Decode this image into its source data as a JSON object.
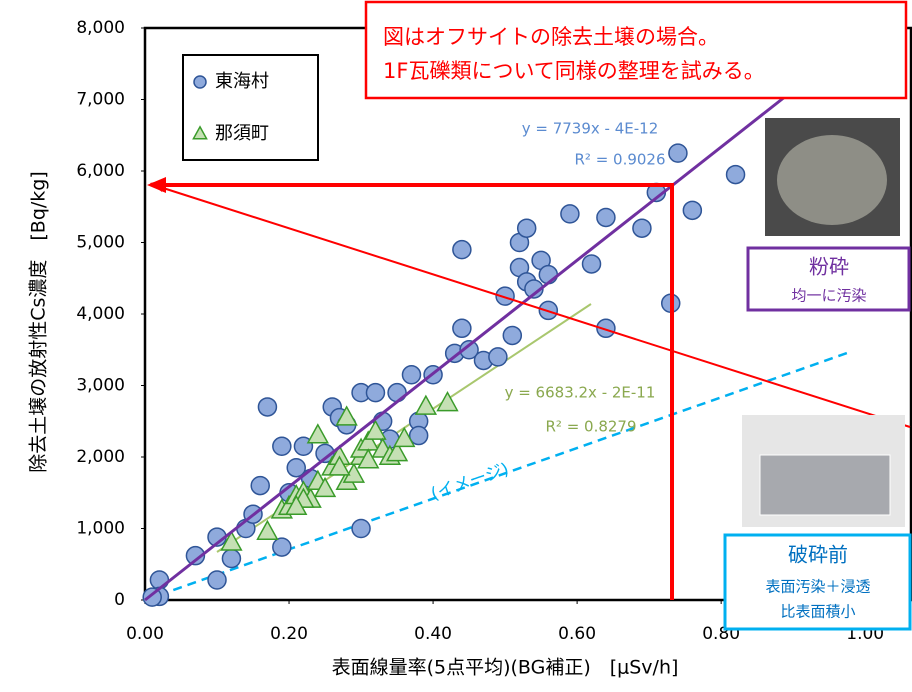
{
  "chart_data": {
    "type": "scatter",
    "x_label": "表面線量率(5点平均)(BG補正)　[μSv/h]",
    "y_label": "除去土壌の放射性Cs濃度　[Bq/kg]",
    "xlim": [
      0,
      1.065
    ],
    "ylim": [
      0,
      8000
    ],
    "xticks": [
      {
        "value": 0,
        "label": "0.00"
      },
      {
        "value": 0.2,
        "label": "0.20"
      },
      {
        "value": 0.4,
        "label": "0.40"
      },
      {
        "value": 0.6,
        "label": "0.60"
      },
      {
        "value": 0.8,
        "label": "0.80"
      },
      {
        "value": 1,
        "label": "1.00"
      }
    ],
    "yticks": [
      0,
      {
        "value": 1000,
        "label": "1,000"
      },
      {
        "value": 2000,
        "label": "2,000"
      },
      {
        "value": 3000,
        "label": "3,000"
      },
      {
        "value": 4000,
        "label": "4,000"
      },
      {
        "value": 5000,
        "label": "5,000"
      },
      {
        "value": 6000,
        "label": "6,000"
      },
      {
        "value": 7000,
        "label": "7,000"
      },
      {
        "value": 8000,
        "label": "8,000"
      }
    ],
    "series": [
      {
        "name": "東海村",
        "marker": "circle",
        "color": "#8faadc",
        "x": [
          0.02,
          0.02,
          0.01,
          0.07,
          0.1,
          0.1,
          0.12,
          0.14,
          0.15,
          0.16,
          0.17,
          0.19,
          0.19,
          0.2,
          0.21,
          0.22,
          0.23,
          0.25,
          0.26,
          0.27,
          0.28,
          0.3,
          0.3,
          0.32,
          0.33,
          0.34,
          0.35,
          0.37,
          0.38,
          0.38,
          0.4,
          0.43,
          0.44,
          0.44,
          0.45,
          0.47,
          0.49,
          0.5,
          0.51,
          0.52,
          0.52,
          0.53,
          0.53,
          0.54,
          0.55,
          0.56,
          0.56,
          0.59,
          0.62,
          0.64,
          0.64,
          0.69,
          0.71,
          0.73,
          0.74,
          0.76,
          0.82
        ],
        "values": [
          280,
          50,
          40,
          620,
          280,
          880,
          580,
          1000,
          1200,
          1600,
          2700,
          2150,
          740,
          1500,
          1850,
          2150,
          1700,
          2050,
          2700,
          2550,
          2450,
          1000,
          2900,
          2900,
          2500,
          2250,
          2900,
          3150,
          2500,
          2300,
          3150,
          3450,
          4900,
          3800,
          3500,
          3350,
          3400,
          4250,
          3700,
          5000,
          4650,
          5200,
          4450,
          4350,
          4750,
          4550,
          4050,
          5400,
          4700,
          5350,
          3800,
          5200,
          5700,
          4150,
          6250,
          5450,
          5950
        ]
      },
      {
        "name": "那須町",
        "marker": "triangle",
        "color": "#c5e0b4",
        "x": [
          0.12,
          0.17,
          0.19,
          0.2,
          0.21,
          0.22,
          0.23,
          0.24,
          0.24,
          0.25,
          0.26,
          0.27,
          0.28,
          0.29,
          0.3,
          0.3,
          0.31,
          0.31,
          0.32,
          0.33,
          0.34,
          0.35,
          0.36,
          0.28,
          0.27,
          0.39,
          0.42,
          0.22,
          0.21
        ],
        "values": [
          800,
          950,
          1250,
          1300,
          1450,
          1500,
          1400,
          2300,
          1650,
          1550,
          1850,
          2000,
          1650,
          1750,
          2000,
          2100,
          2200,
          1950,
          2350,
          2100,
          2000,
          2050,
          2250,
          2550,
          1850,
          2700,
          2750,
          1400,
          1300
        ]
      }
    ],
    "trend_labels": [
      "y = 7739x - 4E-12",
      "R² = 0.9026",
      "y = 6683.2x - 2E-11",
      "R² = 0.8279"
    ],
    "image_label": "(イメージ)",
    "callout": [
      "図はオフサイトの除去土壌の場合。",
      "1F瓦礫類について同様の整理を試みる。"
    ],
    "boxes": [
      {
        "title": "粉砕",
        "lines": [
          "均一に汚染"
        ]
      },
      {
        "title": "破砕前",
        "lines": [
          "表面汚染＋浸透",
          "比表面積小"
        ]
      }
    ]
  }
}
